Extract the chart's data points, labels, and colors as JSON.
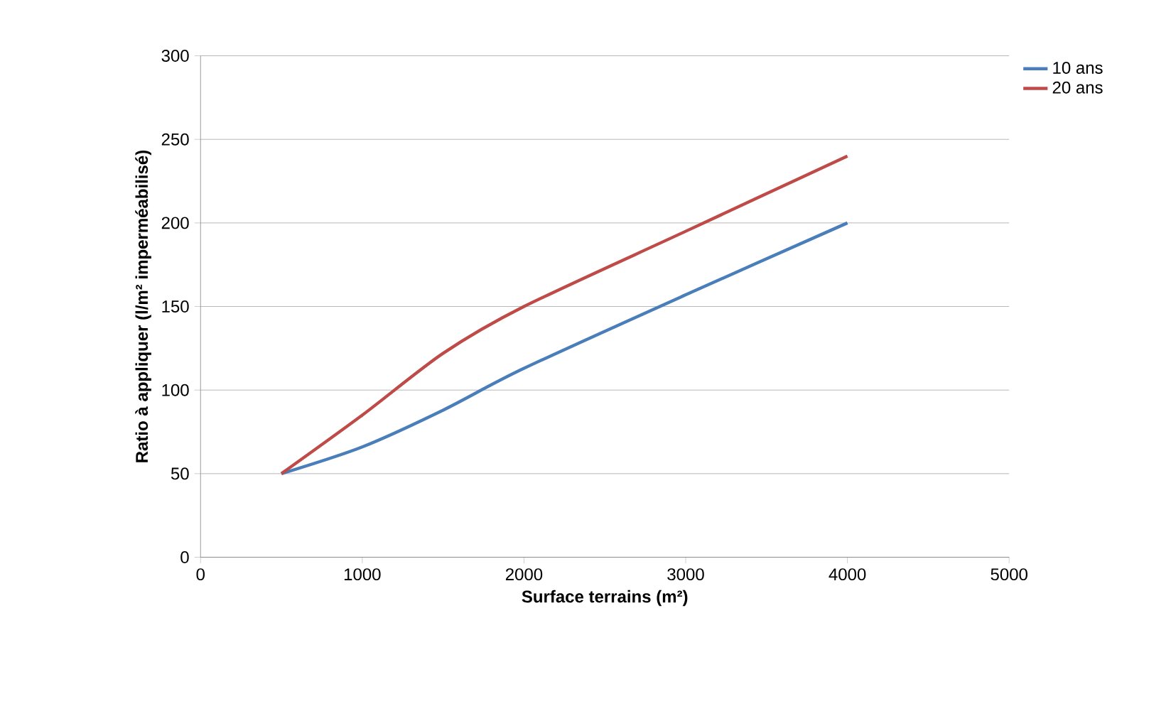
{
  "chart_data": {
    "type": "line",
    "xlabel": "Surface terrains (m²)",
    "ylabel": "Ratio à appliquer (l/m² imperméabilisé)",
    "x": [
      500,
      1000,
      1500,
      2000,
      3000,
      4000
    ],
    "series": [
      {
        "name": "10 ans",
        "color": "#4a7ebb",
        "values": [
          50,
          66,
          88,
          113,
          157,
          200
        ]
      },
      {
        "name": "20 ans",
        "color": "#be4b48",
        "values": [
          50,
          85,
          122,
          150,
          195,
          240
        ]
      }
    ],
    "xlim": [
      0,
      5000
    ],
    "xticks": [
      0,
      1000,
      2000,
      3000,
      4000,
      5000
    ],
    "ylim": [
      0,
      300
    ],
    "yticks": [
      0,
      50,
      100,
      150,
      200,
      250,
      300
    ],
    "grid": "y",
    "legend": "top right",
    "marker": "none",
    "line_style": "solid"
  }
}
